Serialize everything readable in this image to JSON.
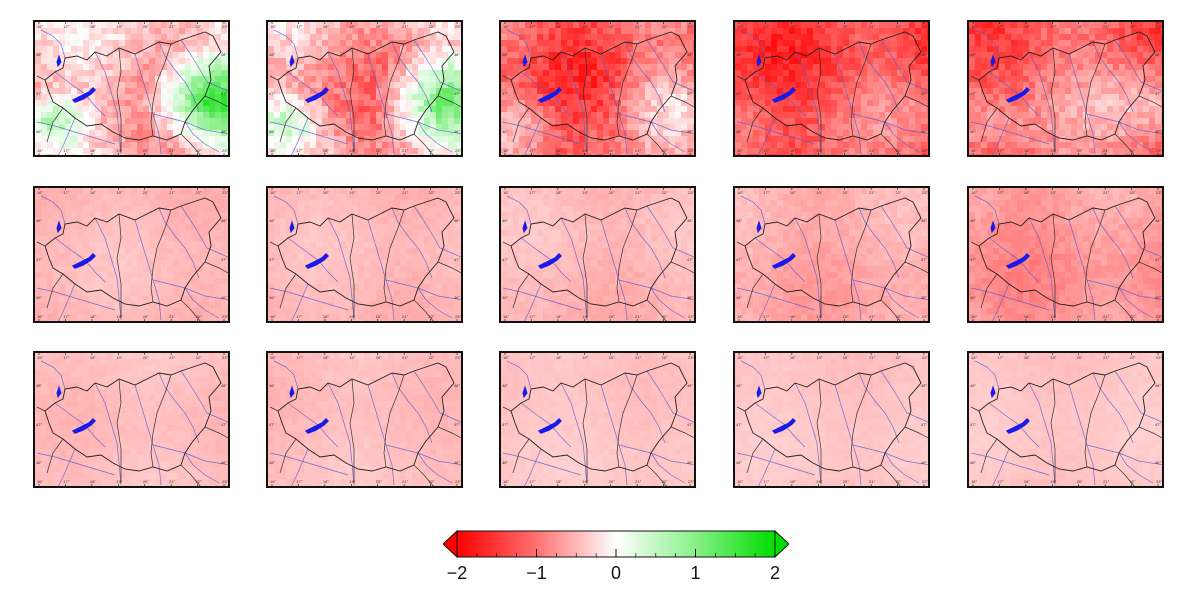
{
  "colorbar": {
    "ticks": [
      -2,
      -1,
      0,
      1,
      2
    ],
    "tick_labels": [
      "−2",
      "−1",
      "0",
      "1",
      "2"
    ],
    "vmin": -2,
    "vmax": 2,
    "extend": "both",
    "colors": {
      "low": "#ff0000",
      "mid": "#ffffff",
      "high": "#00dd00"
    }
  },
  "map_axes": {
    "lon_labels": [
      "16°",
      "17°",
      "18°",
      "19°",
      "20°",
      "21°",
      "22°",
      "23°"
    ],
    "lat_labels": [
      "48°",
      "47°",
      "46°"
    ]
  },
  "grid": {
    "rows": 3,
    "cols": 5
  },
  "panels": [
    {
      "mean": -0.55,
      "spread": 0.55,
      "green_east": 0.95
    },
    {
      "mean": -0.7,
      "spread": 0.6,
      "green_east": 0.75
    },
    {
      "mean": -1.2,
      "spread": 0.55,
      "green_east": 0.35
    },
    {
      "mean": -1.35,
      "spread": 0.45,
      "green_east": 0.15
    },
    {
      "mean": -1.1,
      "spread": 0.5,
      "green_east": 0.25
    },
    {
      "mean": -0.55,
      "spread": 0.12,
      "green_east": 0.0
    },
    {
      "mean": -0.55,
      "spread": 0.12,
      "green_east": 0.0
    },
    {
      "mean": -0.55,
      "spread": 0.14,
      "green_east": 0.0
    },
    {
      "mean": -0.65,
      "spread": 0.18,
      "green_east": 0.0
    },
    {
      "mean": -0.8,
      "spread": 0.22,
      "green_east": 0.0
    },
    {
      "mean": -0.5,
      "spread": 0.1,
      "green_east": 0.0
    },
    {
      "mean": -0.5,
      "spread": 0.1,
      "green_east": 0.0
    },
    {
      "mean": -0.45,
      "spread": 0.08,
      "green_east": 0.0
    },
    {
      "mean": -0.45,
      "spread": 0.08,
      "green_east": 0.0
    },
    {
      "mean": -0.45,
      "spread": 0.08,
      "green_east": 0.0
    }
  ]
}
